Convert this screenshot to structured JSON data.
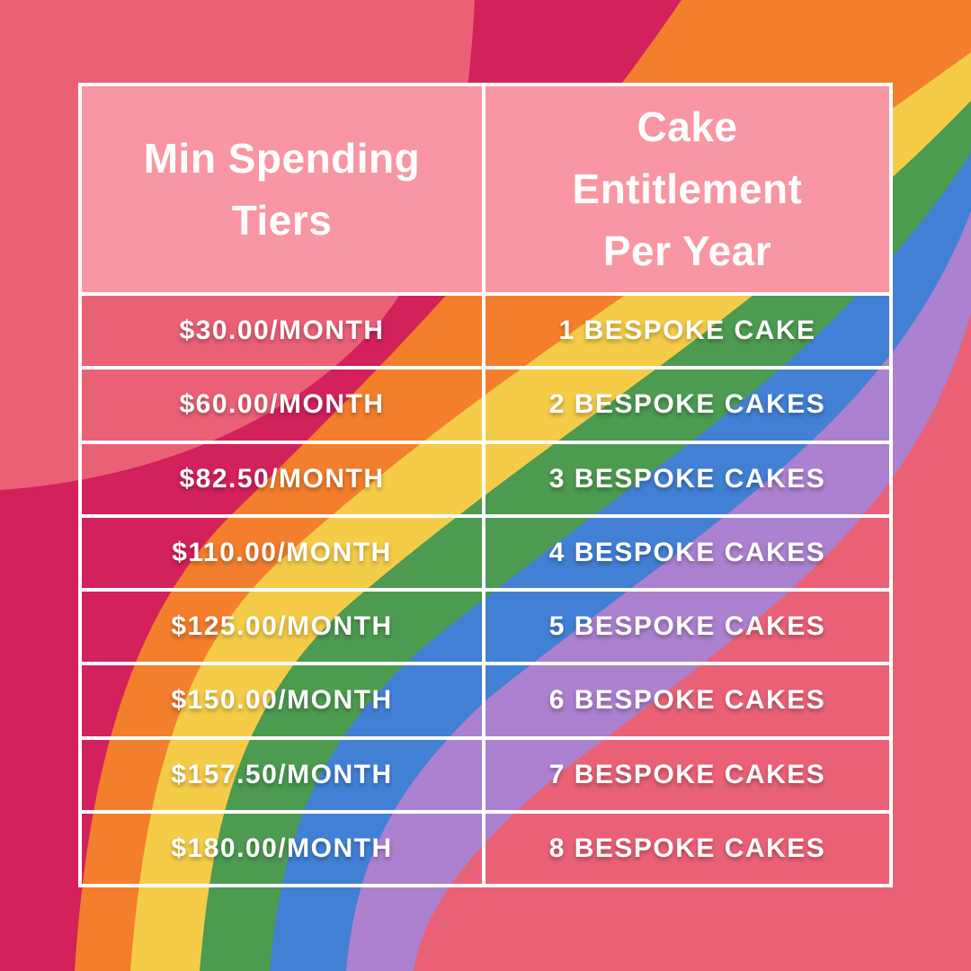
{
  "title": "Cake loyalty tier infographic",
  "colors": {
    "background": "#EA6176",
    "header_pink": "#F996A3",
    "border_white": "#FFFFFF",
    "text_white": "#FFFFFF",
    "stripes": {
      "crimson": "#D3215C",
      "orange": "#F37E2C",
      "yellow": "#F5CC48",
      "green": "#4C9B51",
      "blue": "#4280D5",
      "purple": "#AC81D0"
    }
  },
  "table": {
    "columns": [
      {
        "title": "Min Spending Tiers"
      },
      {
        "title": "Cake Entitlement Per Year"
      }
    ],
    "rows": [
      {
        "tier": "$30.00/MONTH",
        "entitlement": "1 BESPOKE CAKE"
      },
      {
        "tier": "$60.00/MONTH",
        "entitlement": "2 BESPOKE CAKES"
      },
      {
        "tier": "$82.50/MONTH",
        "entitlement": "3 BESPOKE CAKES"
      },
      {
        "tier": "$110.00/MONTH",
        "entitlement": "4 BESPOKE CAKES"
      },
      {
        "tier": "$125.00/MONTH",
        "entitlement": "5 BESPOKE CAKES"
      },
      {
        "tier": "$150.00/MONTH",
        "entitlement": "6 BESPOKE CAKES"
      },
      {
        "tier": "$157.50/MONTH",
        "entitlement": "7 BESPOKE CAKES"
      },
      {
        "tier": "$180.00/MONTH",
        "entitlement": "8 BESPOKE CAKES"
      }
    ]
  },
  "chart_data": {
    "type": "table",
    "title": "Cake Entitlement by Minimum Spending Tier",
    "columns": [
      "Min Spending Tiers",
      "Cake Entitlement Per Year"
    ],
    "monthly_spend_usd": [
      30.0,
      60.0,
      82.5,
      110.0,
      125.0,
      150.0,
      157.5,
      180.0
    ],
    "cakes_per_year": [
      1,
      2,
      3,
      4,
      5,
      6,
      7,
      8
    ],
    "rows": [
      [
        "$30.00/MONTH",
        "1 BESPOKE CAKE"
      ],
      [
        "$60.00/MONTH",
        "2 BESPOKE CAKES"
      ],
      [
        "$82.50/MONTH",
        "3 BESPOKE CAKES"
      ],
      [
        "$110.00/MONTH",
        "4 BESPOKE CAKES"
      ],
      [
        "$125.00/MONTH",
        "5 BESPOKE CAKES"
      ],
      [
        "$150.00/MONTH",
        "6 BESPOKE CAKES"
      ],
      [
        "$157.50/MONTH",
        "7 BESPOKE CAKES"
      ],
      [
        "$180.00/MONTH",
        "8 BESPOKE CAKES"
      ]
    ]
  }
}
